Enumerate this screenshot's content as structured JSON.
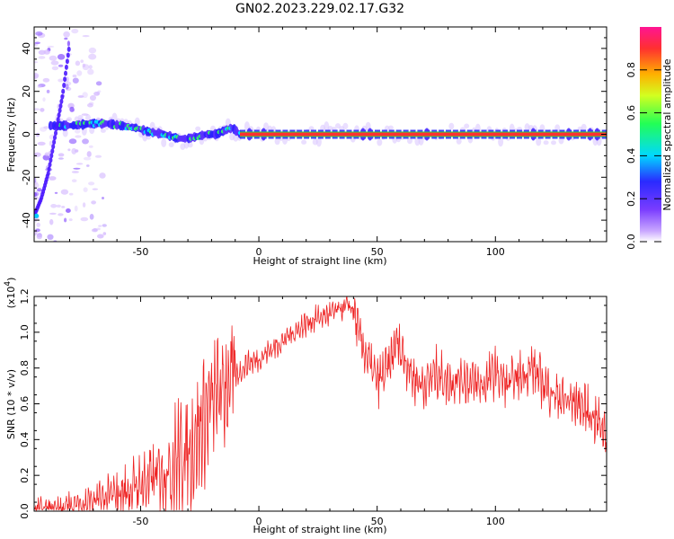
{
  "title": "GN02.2023.229.02.17.G32",
  "chart_data": [
    {
      "type": "heatmap",
      "xlabel": "Height of straight line (km)",
      "ylabel": "Frequency (Hz)",
      "xlim": [
        -95,
        147
      ],
      "ylim": [
        -50,
        50
      ],
      "xticks": [
        -50,
        0,
        50,
        100
      ],
      "yticks": [
        -40,
        -20,
        0,
        20,
        40
      ],
      "colorbar": {
        "label": "Normalized spectral amplitude",
        "range": [
          0.0,
          1.0
        ],
        "ticks": [
          "0.0",
          "0.2",
          "0.4",
          "0.6",
          "0.8"
        ],
        "colors": [
          "#ffffff",
          "#c9a7ff",
          "#7a3cff",
          "#2a2aff",
          "#00d8ff",
          "#22ff55",
          "#d2ff20",
          "#ffb000",
          "#ff3030",
          "#ff1493"
        ]
      },
      "ridge": {
        "x": [
          -88,
          -80,
          -70,
          -64,
          -58,
          -52,
          -46,
          -40,
          -34,
          -30,
          -26,
          -22,
          -18,
          -14,
          -11,
          -8,
          0,
          20,
          40,
          60,
          80,
          100,
          120,
          147
        ],
        "y": [
          4,
          4,
          5,
          5,
          4,
          3,
          1,
          0,
          -2,
          -2,
          -1,
          0,
          0,
          2,
          3,
          0,
          0,
          0,
          0,
          0,
          0,
          0,
          0,
          0
        ]
      },
      "trace": {
        "x": [
          -95,
          -92,
          -89,
          -86,
          -83,
          -80
        ],
        "y": [
          -38,
          -30,
          -18,
          0,
          18,
          42
        ]
      }
    },
    {
      "type": "line",
      "xlabel": "Height of straight line (km)",
      "ylabel": "SNR (10 * v/v)",
      "y_multiplier": "(x10",
      "y_multiplier_exp": "4",
      "y_multiplier_close": ")",
      "xlim": [
        -95,
        147
      ],
      "ylim": [
        0,
        1.2
      ],
      "xticks": [
        -50,
        0,
        50,
        100
      ],
      "yticks": [
        "0.0",
        "0.2",
        "0.4",
        "0.6",
        "0.8",
        "1.0",
        "1.2"
      ],
      "series": [
        {
          "color": "#ee2222",
          "x": [
            -95,
            -85,
            -75,
            -65,
            -55,
            -50,
            -45,
            -40,
            -35,
            -30,
            -25,
            -20,
            -15,
            -10,
            -5,
            0,
            5,
            10,
            15,
            20,
            25,
            30,
            35,
            38,
            40,
            43,
            46,
            50,
            55,
            58,
            60,
            63,
            65,
            70,
            75,
            80,
            85,
            90,
            95,
            100,
            105,
            110,
            115,
            120,
            125,
            130,
            135,
            140,
            143,
            147
          ],
          "y": [
            0.01,
            0.02,
            0.04,
            0.07,
            0.12,
            0.15,
            0.18,
            0.22,
            0.27,
            0.33,
            0.45,
            0.6,
            0.68,
            0.75,
            0.82,
            0.85,
            0.9,
            0.95,
            1.0,
            1.05,
            1.08,
            1.1,
            1.13,
            1.15,
            1.12,
            0.95,
            0.85,
            0.72,
            0.8,
            0.95,
            0.9,
            0.82,
            0.75,
            0.7,
            0.78,
            0.72,
            0.75,
            0.72,
            0.7,
            0.78,
            0.7,
            0.75,
            0.8,
            0.72,
            0.65,
            0.62,
            0.6,
            0.55,
            0.5,
            0.45
          ]
        }
      ]
    }
  ]
}
